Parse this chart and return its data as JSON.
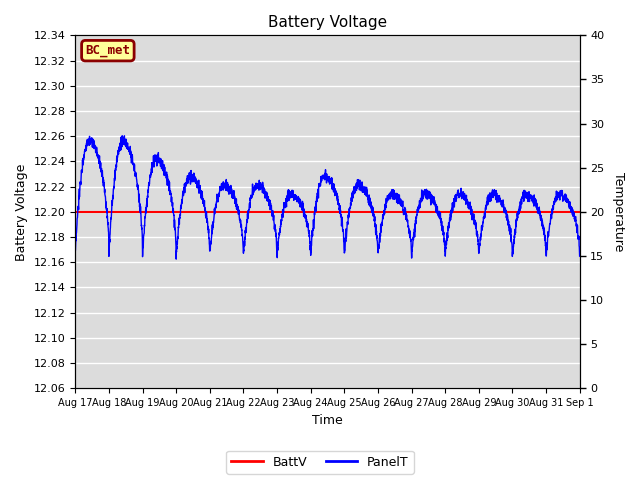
{
  "title": "Battery Voltage",
  "xlabel": "Time",
  "ylabel_left": "Battery Voltage",
  "ylabel_right": "Temperature",
  "ylim_left": [
    12.06,
    12.34
  ],
  "ylim_right": [
    0,
    40
  ],
  "yticks_left": [
    12.06,
    12.08,
    12.1,
    12.12,
    12.14,
    12.16,
    12.18,
    12.2,
    12.22,
    12.24,
    12.26,
    12.28,
    12.3,
    12.32,
    12.34
  ],
  "yticks_right": [
    0,
    5,
    10,
    15,
    20,
    25,
    30,
    35,
    40
  ],
  "batt_voltage": 12.2,
  "bg_color": "#dcdcdc",
  "grid_color": "white",
  "box_label": "BC_met",
  "box_bg": "#ffff99",
  "box_border": "#8B0000",
  "box_text_color": "#8B0000",
  "line_color_batt": "red",
  "line_color_panel": "blue",
  "legend_labels": [
    "BattV",
    "PanelT"
  ],
  "x_tick_labels": [
    "Aug 17",
    "Aug 18",
    "Aug 19",
    "Aug 20",
    "Aug 21",
    "Aug 22",
    "Aug 23",
    "Aug 24",
    "Aug 25",
    "Aug 26",
    "Aug 27",
    "Aug 28",
    "Aug 29",
    "Aug 30",
    "Aug 31",
    "Sep 1"
  ]
}
